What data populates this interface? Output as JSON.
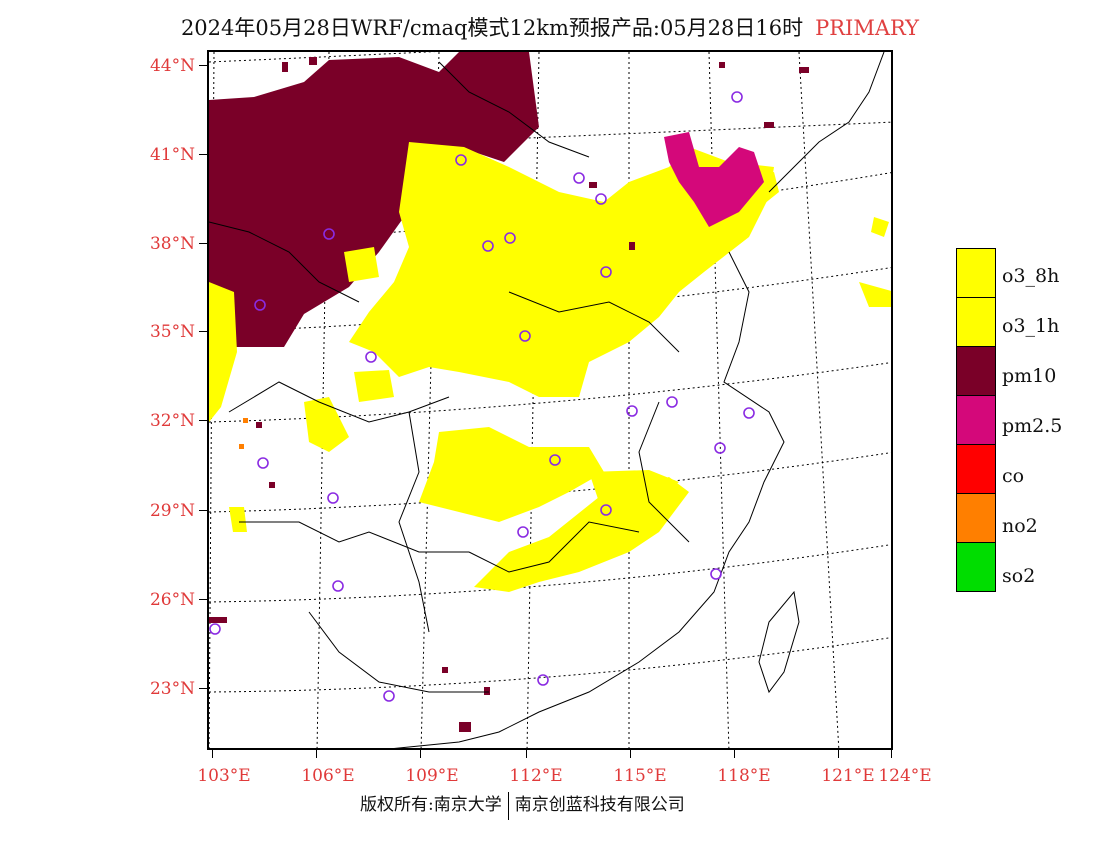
{
  "header": {
    "title": "2024年05月28日WRF/cmaq模式12km预报产品:05月28日16时",
    "tag": "PRIMARY"
  },
  "axes": {
    "lat_labels": [
      "44°N",
      "41°N",
      "38°N",
      "35°N",
      "32°N",
      "29°N",
      "26°N",
      "23°N"
    ],
    "lon_labels": [
      "103°E",
      "106°E",
      "109°E",
      "112°E",
      "115°E",
      "118°E",
      "121°E",
      "124°E"
    ]
  },
  "legend": {
    "items": [
      {
        "label": "o3_8h",
        "color": "#ffff00"
      },
      {
        "label": "o3_1h",
        "color": "#ffff00"
      },
      {
        "label": "pm10",
        "color": "#7a0028"
      },
      {
        "label": "pm2.5",
        "color": "#d4087a"
      },
      {
        "label": "co",
        "color": "#ff0000"
      },
      {
        "label": "no2",
        "color": "#ff7f00"
      },
      {
        "label": "so2",
        "color": "#00dd00"
      }
    ]
  },
  "footer": {
    "left": "版权所有:南京大学",
    "right": "南京创蓝科技有限公司"
  },
  "colors": {
    "o3": "#ffff00",
    "pm10": "#7a0028",
    "pm25": "#d4087a",
    "no2": "#ff7f00",
    "site_marker": "#8a2be2",
    "axis_label": "#e03a3a"
  }
}
